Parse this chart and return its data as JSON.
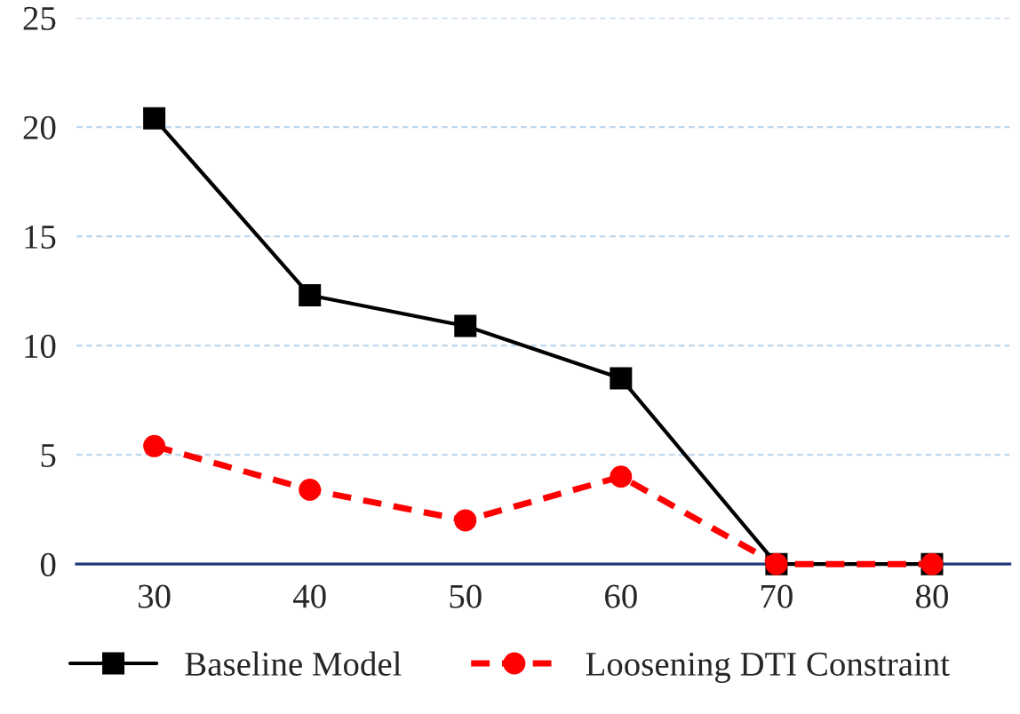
{
  "chart_data": {
    "type": "line",
    "categories": [
      "30",
      "40",
      "50",
      "60",
      "70",
      "80"
    ],
    "series": [
      {
        "name": "Baseline Model",
        "color": "#000000",
        "marker": "square",
        "line_style": "solid",
        "values": [
          20.4,
          12.3,
          10.9,
          8.5,
          0,
          0
        ]
      },
      {
        "name": "Loosening DTI Constraint",
        "color": "#ff0000",
        "marker": "circle",
        "line_style": "dashed",
        "values": [
          5.4,
          3.4,
          2.0,
          4.0,
          0,
          0
        ]
      }
    ],
    "ylim": [
      0,
      25
    ],
    "yticks": [
      0,
      5,
      10,
      15,
      20,
      25
    ],
    "grid": "y",
    "legend": "bottom"
  }
}
